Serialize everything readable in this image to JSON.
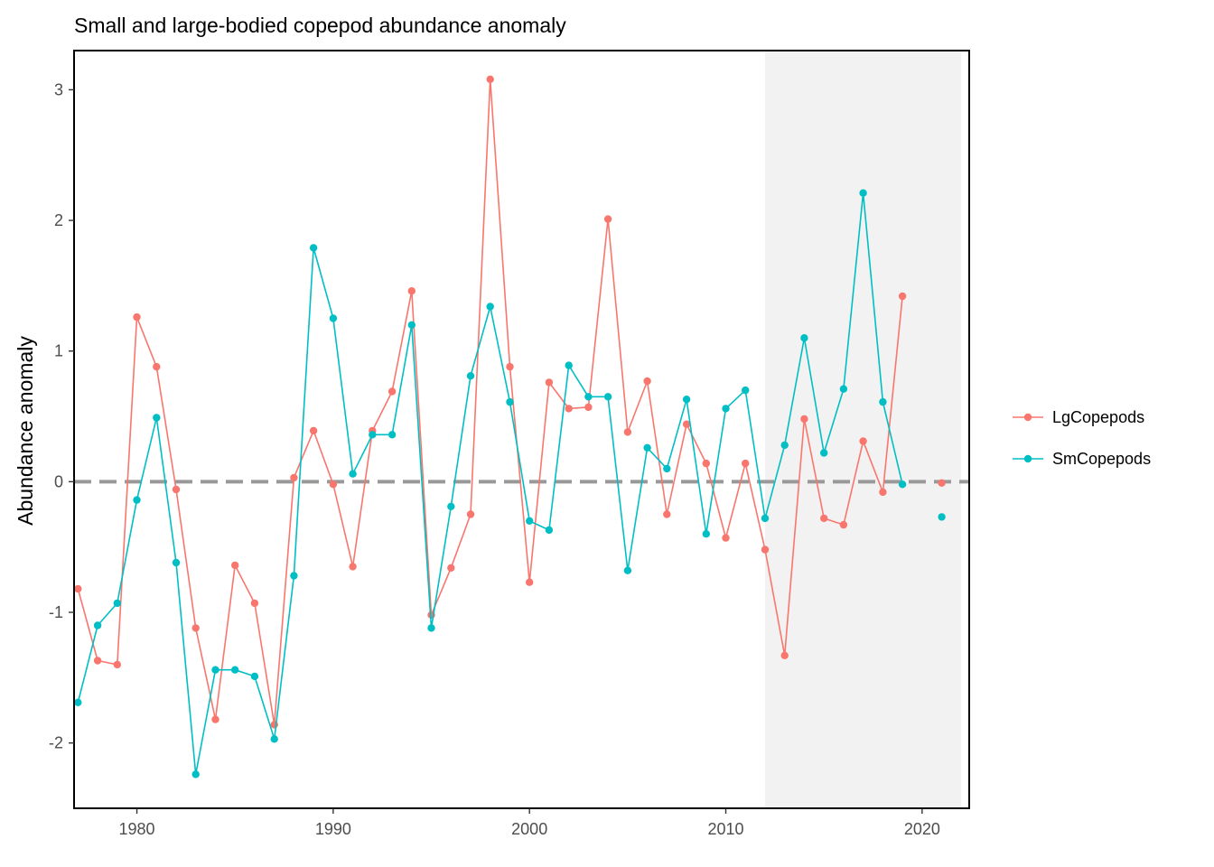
{
  "chart_data": {
    "type": "line",
    "title": "Small and large-bodied copepod abundance anomaly",
    "xlabel": "",
    "ylabel": "Abundance anomaly",
    "xlim": [
      1976.8,
      2022.4
    ],
    "ylim": [
      -2.5,
      3.3
    ],
    "x_ticks": [
      1980,
      1990,
      2000,
      2010,
      2020
    ],
    "y_ticks": [
      -2,
      -1,
      0,
      1,
      2,
      3
    ],
    "x_tick_labels": [
      "1980",
      "1990",
      "2000",
      "2010",
      "2020"
    ],
    "y_tick_labels": [
      "-2",
      "-1",
      "0",
      "1",
      "2",
      "3"
    ],
    "reference_line": {
      "y": 0,
      "style": "dashed",
      "color": "#999999"
    },
    "shaded_region": {
      "x": [
        2012,
        2022
      ],
      "color": "#f2f2f2"
    },
    "legend_position": "right",
    "grid": false,
    "x": [
      1977,
      1978,
      1979,
      1980,
      1981,
      1982,
      1983,
      1984,
      1985,
      1986,
      1987,
      1988,
      1989,
      1990,
      1991,
      1992,
      1993,
      1994,
      1995,
      1996,
      1997,
      1998,
      1999,
      2000,
      2001,
      2002,
      2003,
      2004,
      2005,
      2006,
      2007,
      2008,
      2009,
      2010,
      2011,
      2012,
      2013,
      2014,
      2015,
      2016,
      2017,
      2018,
      2019,
      2020,
      2021
    ],
    "series": [
      {
        "name": "LgCopepods",
        "color": "#F8766D",
        "values": [
          -0.82,
          -1.37,
          -1.4,
          1.26,
          0.88,
          -0.06,
          -1.12,
          -1.82,
          -0.64,
          -0.93,
          -1.86,
          0.03,
          0.39,
          -0.02,
          -0.65,
          0.39,
          0.69,
          1.46,
          -1.02,
          -0.66,
          -0.25,
          3.08,
          0.88,
          -0.77,
          0.76,
          0.56,
          0.57,
          2.01,
          0.38,
          0.77,
          -0.25,
          0.44,
          0.14,
          -0.43,
          0.14,
          -0.52,
          -1.33,
          0.48,
          -0.28,
          -0.33,
          0.31,
          -0.08,
          1.42,
          null,
          -0.01
        ]
      },
      {
        "name": "SmCopepods",
        "color": "#00BFC4",
        "values": [
          -1.69,
          -1.1,
          -0.93,
          -0.14,
          0.49,
          -0.62,
          -2.24,
          -1.44,
          -1.44,
          -1.49,
          -1.97,
          -0.72,
          1.79,
          1.25,
          0.06,
          0.36,
          0.36,
          1.2,
          -1.12,
          -0.19,
          0.81,
          1.34,
          0.61,
          -0.3,
          -0.37,
          0.89,
          0.65,
          0.65,
          -0.68,
          0.26,
          0.1,
          0.63,
          -0.4,
          0.56,
          0.7,
          -0.28,
          0.28,
          1.1,
          0.22,
          0.71,
          2.21,
          0.61,
          -0.02,
          null,
          -0.27
        ]
      }
    ]
  }
}
